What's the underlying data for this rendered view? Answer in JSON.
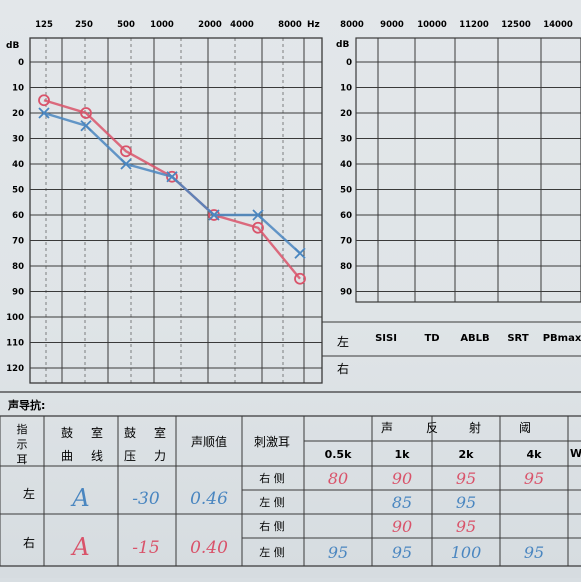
{
  "left_audiogram": {
    "frequency_labels": [
      "125",
      "250",
      "500",
      "1000",
      "2000",
      "4000",
      "8000"
    ],
    "hz_unit": "Hz",
    "db_unit": "dB",
    "db_labels": [
      "0",
      "10",
      "20",
      "30",
      "40",
      "50",
      "60",
      "70",
      "80",
      "90",
      "100",
      "110",
      "120"
    ]
  },
  "right_audiogram": {
    "frequency_labels": [
      "8000",
      "9000",
      "10000",
      "11200",
      "12500",
      "14000"
    ],
    "db_unit": "dB",
    "db_labels": [
      "0",
      "10",
      "20",
      "30",
      "40",
      "50",
      "60",
      "70",
      "80",
      "90"
    ],
    "side_left": "左",
    "side_right": "右",
    "test_labels": [
      "SISI",
      "TD",
      "ABLB",
      "SRT",
      "PBmax"
    ]
  },
  "colors": {
    "right_ear": "#d9536a",
    "left_ear": "#4a86c0",
    "grid": "#3a3a3a"
  },
  "chart_data": {
    "type": "line",
    "x": [
      125,
      250,
      500,
      1000,
      2000,
      4000,
      8000
    ],
    "x_scale": "log",
    "ylim": [
      120,
      0
    ],
    "ylabel": "dB",
    "series": [
      {
        "values": [
          15,
          20,
          35,
          45,
          60,
          65,
          85
        ]
      },
      {
        "values": [
          20,
          25,
          40,
          45,
          60,
          60,
          75
        ]
      }
    ]
  },
  "impedance": {
    "heading": "声导抗:",
    "headers": {
      "ear": "指示耳",
      "curve": "鼓室曲线",
      "pressure": "鼓室压力",
      "compliance": "声顺值",
      "stim_ear": "刺激耳",
      "reflex": "声反射阈",
      "freqs": [
        "0.5k",
        "1k",
        "2k",
        "4k"
      ],
      "extra": "W"
    },
    "ears": [
      {
        "ear": "左",
        "curve": "A",
        "pressure": "-30",
        "compliance": "0.46"
      },
      {
        "ear": "右",
        "curve": "A",
        "pressure": "-15",
        "compliance": "0.40"
      }
    ],
    "rows": [
      {
        "stim": "右 侧",
        "values": [
          "80",
          "90",
          "95",
          "95"
        ]
      },
      {
        "stim": "左 侧",
        "values": [
          "",
          "85",
          "95",
          ""
        ]
      },
      {
        "stim": "右 侧",
        "values": [
          "",
          "90",
          "95",
          ""
        ]
      },
      {
        "stim": "左 侧",
        "values": [
          "95",
          "95",
          "100",
          "95"
        ]
      }
    ]
  }
}
